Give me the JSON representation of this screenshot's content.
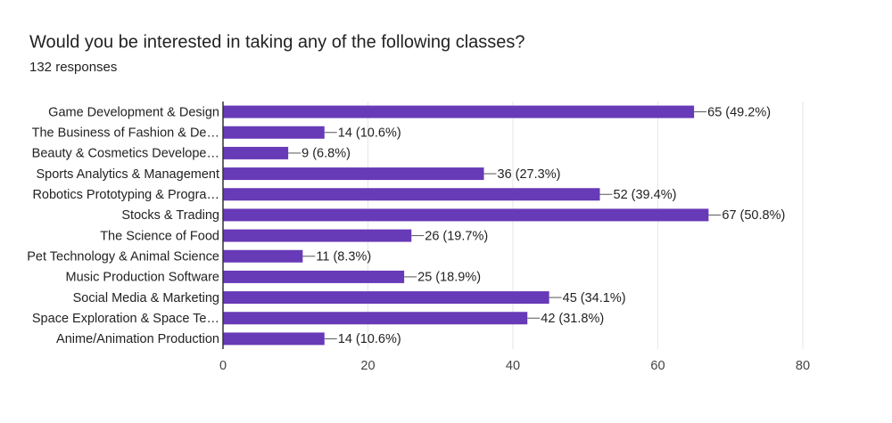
{
  "chart_data": {
    "type": "hbar",
    "title": "Would you be interested in taking any of the following classes?",
    "subtitle": "132 responses",
    "categories": [
      "Game Development & Design",
      "The Business of Fashion & De…",
      "Beauty & Cosmetics Develope…",
      "Sports Analytics & Management",
      "Robotics Prototyping & Progra…",
      "Stocks & Trading",
      "The Science of Food",
      "Pet Technology & Animal Science",
      "Music Production Software",
      "Social Media & Marketing",
      "Space Exploration & Space Te…",
      "Anime/Animation Production"
    ],
    "values": [
      65,
      14,
      9,
      36,
      52,
      67,
      26,
      11,
      25,
      45,
      42,
      14
    ],
    "value_labels": [
      "65 (49.2%)",
      "14 (10.6%)",
      "9 (6.8%)",
      "36 (27.3%)",
      "52 (39.4%)",
      "67 (50.8%)",
      "26 (19.7%)",
      "11 (8.3%)",
      "25 (18.9%)",
      "45 (34.1%)",
      "42 (31.8%)",
      "14 (10.6%)"
    ],
    "color": "#673ab7",
    "xlim": [
      0,
      80
    ],
    "xticks": [
      0,
      20,
      40,
      60,
      80
    ],
    "grid": true
  }
}
